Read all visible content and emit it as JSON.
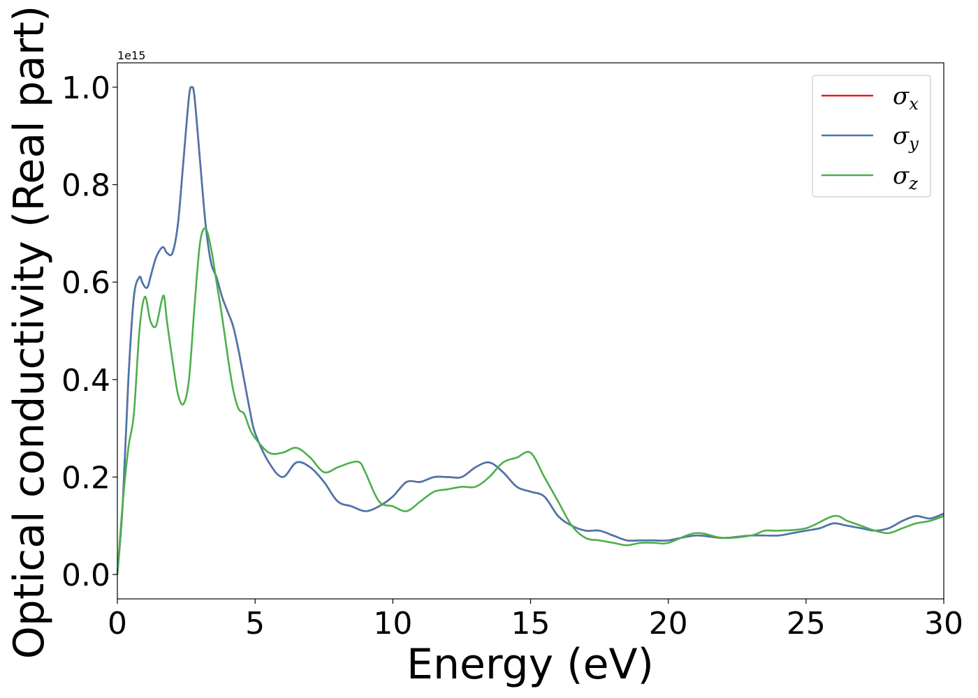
{
  "chart_data": {
    "type": "line",
    "xlabel": "Energy (eV)",
    "ylabel": "Optical conductivity (Real part)",
    "y_offset_label": "1e15",
    "y_scale_factor": 1000000000000000.0,
    "xlim": [
      0,
      30
    ],
    "ylim": [
      -0.05,
      1.05
    ],
    "x_ticks": [
      0,
      5,
      10,
      15,
      20,
      25,
      30
    ],
    "x_tick_labels": [
      "0",
      "5",
      "10",
      "15",
      "20",
      "25",
      "30"
    ],
    "y_ticks": [
      0.0,
      0.2,
      0.4,
      0.6,
      0.8,
      1.0
    ],
    "y_tick_labels": [
      "0.0",
      "0.2",
      "0.4",
      "0.6",
      "0.8",
      "1.0"
    ],
    "grid": false,
    "legend_position": "top-right",
    "series": [
      {
        "name": "σx",
        "legend_base": "σ",
        "legend_sub": "x",
        "color": "#e41a1c",
        "x": [
          0,
          0.2,
          0.4,
          0.6,
          0.8,
          0.9,
          1.0,
          1.1,
          1.2,
          1.4,
          1.6,
          1.7,
          1.8,
          2.0,
          2.2,
          2.4,
          2.6,
          2.7,
          2.8,
          3.0,
          3.2,
          3.4,
          3.6,
          3.8,
          4.0,
          4.2,
          4.4,
          4.6,
          4.8,
          5.0,
          5.5,
          6.0,
          6.5,
          7.0,
          7.5,
          8.0,
          8.5,
          9.0,
          9.5,
          10.0,
          10.5,
          11.0,
          11.5,
          12.0,
          12.5,
          13.0,
          13.5,
          14.0,
          14.5,
          15.0,
          15.5,
          16.0,
          16.5,
          17.0,
          17.5,
          18.0,
          18.5,
          19.0,
          19.5,
          20.0,
          21.0,
          22.0,
          23.0,
          24.0,
          24.5,
          25.0,
          25.5,
          26.0,
          26.5,
          27.0,
          27.5,
          28.0,
          28.5,
          29.0,
          29.5,
          30.0
        ],
        "values": [
          0.0,
          0.15,
          0.4,
          0.57,
          0.61,
          0.6,
          0.59,
          0.59,
          0.61,
          0.65,
          0.67,
          0.67,
          0.66,
          0.66,
          0.72,
          0.85,
          0.98,
          1.0,
          0.98,
          0.85,
          0.72,
          0.64,
          0.61,
          0.57,
          0.54,
          0.51,
          0.46,
          0.4,
          0.34,
          0.29,
          0.23,
          0.2,
          0.23,
          0.22,
          0.19,
          0.15,
          0.14,
          0.13,
          0.14,
          0.16,
          0.19,
          0.19,
          0.2,
          0.2,
          0.2,
          0.22,
          0.23,
          0.21,
          0.18,
          0.17,
          0.16,
          0.12,
          0.1,
          0.09,
          0.09,
          0.08,
          0.07,
          0.07,
          0.07,
          0.07,
          0.08,
          0.075,
          0.08,
          0.08,
          0.085,
          0.09,
          0.095,
          0.105,
          0.1,
          0.095,
          0.09,
          0.095,
          0.11,
          0.12,
          0.115,
          0.125
        ]
      },
      {
        "name": "σy",
        "legend_base": "σ",
        "legend_sub": "y",
        "color": "#4a77ad",
        "x": [
          0,
          0.2,
          0.4,
          0.6,
          0.8,
          0.9,
          1.0,
          1.1,
          1.2,
          1.4,
          1.6,
          1.7,
          1.8,
          2.0,
          2.2,
          2.4,
          2.6,
          2.7,
          2.8,
          3.0,
          3.2,
          3.4,
          3.6,
          3.8,
          4.0,
          4.2,
          4.4,
          4.6,
          4.8,
          5.0,
          5.5,
          6.0,
          6.5,
          7.0,
          7.5,
          8.0,
          8.5,
          9.0,
          9.5,
          10.0,
          10.5,
          11.0,
          11.5,
          12.0,
          12.5,
          13.0,
          13.5,
          14.0,
          14.5,
          15.0,
          15.5,
          16.0,
          16.5,
          17.0,
          17.5,
          18.0,
          18.5,
          19.0,
          19.5,
          20.0,
          21.0,
          22.0,
          23.0,
          24.0,
          24.5,
          25.0,
          25.5,
          26.0,
          26.5,
          27.0,
          27.5,
          28.0,
          28.5,
          29.0,
          29.5,
          30.0
        ],
        "values": [
          0.0,
          0.15,
          0.4,
          0.57,
          0.61,
          0.6,
          0.59,
          0.59,
          0.61,
          0.65,
          0.67,
          0.67,
          0.66,
          0.66,
          0.72,
          0.85,
          0.98,
          1.0,
          0.98,
          0.85,
          0.72,
          0.64,
          0.61,
          0.57,
          0.54,
          0.51,
          0.46,
          0.4,
          0.34,
          0.29,
          0.23,
          0.2,
          0.23,
          0.22,
          0.19,
          0.15,
          0.14,
          0.13,
          0.14,
          0.16,
          0.19,
          0.19,
          0.2,
          0.2,
          0.2,
          0.22,
          0.23,
          0.21,
          0.18,
          0.17,
          0.16,
          0.12,
          0.1,
          0.09,
          0.09,
          0.08,
          0.07,
          0.07,
          0.07,
          0.07,
          0.08,
          0.075,
          0.08,
          0.08,
          0.085,
          0.09,
          0.095,
          0.105,
          0.1,
          0.095,
          0.09,
          0.095,
          0.11,
          0.12,
          0.115,
          0.125
        ]
      },
      {
        "name": "σz",
        "legend_base": "σ",
        "legend_sub": "z",
        "color": "#4daf4a",
        "x": [
          0,
          0.2,
          0.4,
          0.6,
          0.8,
          1.0,
          1.2,
          1.4,
          1.6,
          1.7,
          1.8,
          2.0,
          2.2,
          2.4,
          2.6,
          2.8,
          3.0,
          3.2,
          3.4,
          3.6,
          3.8,
          4.0,
          4.2,
          4.4,
          4.6,
          4.8,
          5.0,
          5.5,
          6.0,
          6.5,
          7.0,
          7.5,
          8.0,
          8.5,
          8.8,
          9.0,
          9.5,
          10.0,
          10.5,
          11.0,
          11.5,
          12.0,
          12.5,
          13.0,
          13.5,
          14.0,
          14.5,
          15.0,
          15.5,
          16.0,
          16.5,
          17.0,
          17.5,
          18.0,
          18.5,
          19.0,
          19.5,
          20.0,
          21.0,
          22.0,
          23.0,
          23.5,
          24.0,
          25.0,
          26.0,
          26.5,
          27.0,
          27.5,
          28.0,
          28.5,
          29.0,
          29.5,
          30.0
        ],
        "values": [
          0.0,
          0.15,
          0.26,
          0.33,
          0.5,
          0.57,
          0.52,
          0.51,
          0.56,
          0.57,
          0.52,
          0.44,
          0.37,
          0.35,
          0.4,
          0.55,
          0.68,
          0.71,
          0.67,
          0.6,
          0.53,
          0.45,
          0.38,
          0.34,
          0.33,
          0.3,
          0.28,
          0.25,
          0.25,
          0.26,
          0.24,
          0.21,
          0.22,
          0.23,
          0.23,
          0.21,
          0.15,
          0.14,
          0.13,
          0.15,
          0.17,
          0.175,
          0.18,
          0.18,
          0.2,
          0.23,
          0.24,
          0.25,
          0.2,
          0.15,
          0.1,
          0.075,
          0.07,
          0.065,
          0.06,
          0.065,
          0.065,
          0.065,
          0.085,
          0.075,
          0.08,
          0.09,
          0.09,
          0.095,
          0.12,
          0.11,
          0.1,
          0.09,
          0.085,
          0.095,
          0.105,
          0.11,
          0.12
        ]
      }
    ]
  }
}
